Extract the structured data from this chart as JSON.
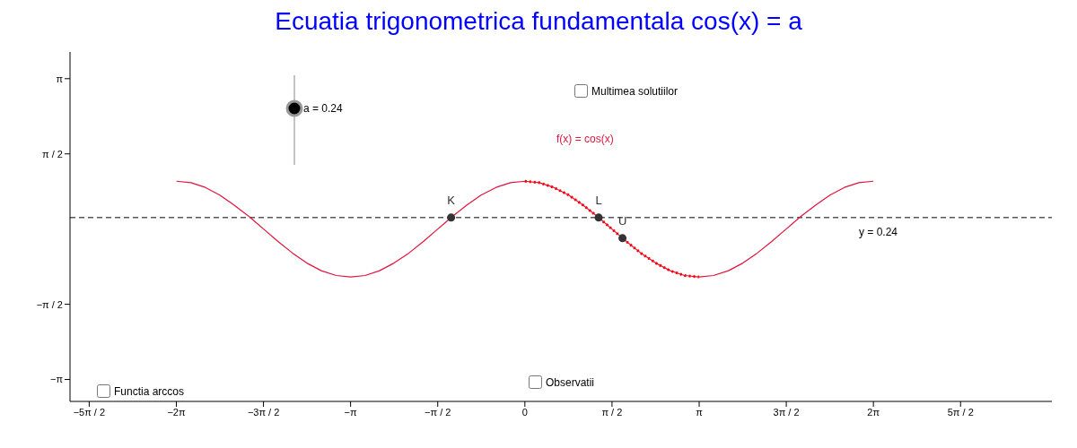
{
  "chart_data": {
    "type": "line",
    "title": "Ecuatia trigonometrica fundamentala cos(x) = a",
    "xlim": [
      -8.2,
      9.5
    ],
    "ylim": [
      -3.6,
      3.7
    ],
    "xticks": [
      {
        "value": -7.854,
        "label": "−5π / 2"
      },
      {
        "value": -6.283,
        "label": "−2π"
      },
      {
        "value": -4.712,
        "label": "−3π / 2"
      },
      {
        "value": -3.142,
        "label": "−π"
      },
      {
        "value": -1.571,
        "label": "−π / 2"
      },
      0,
      {
        "value": 1.571,
        "label": "π / 2"
      },
      {
        "value": 3.142,
        "label": "π"
      },
      {
        "value": 4.712,
        "label": "3π / 2"
      },
      {
        "value": 6.283,
        "label": "2π"
      },
      {
        "value": 7.854,
        "label": "5π / 2"
      }
    ],
    "yticks": [
      {
        "value": -3.142,
        "label": "−π"
      },
      {
        "value": -1.571,
        "label": "−π / 2"
      },
      {
        "value": 1.571,
        "label": "π / 2"
      },
      {
        "value": 3.142,
        "label": "π"
      }
    ],
    "grid": false,
    "legend": false,
    "marker": "none",
    "series": [
      {
        "name": "f(x) = cos(x)",
        "color": "#e0143c",
        "line_style": "solid",
        "x": [
          -6.28,
          -6.02,
          -5.76,
          -5.5,
          -5.24,
          -4.97,
          -4.71,
          -4.45,
          -4.19,
          -3.93,
          -3.67,
          -3.4,
          -3.14,
          -2.88,
          -2.62,
          -2.36,
          -2.09,
          -1.83,
          -1.57,
          -1.31,
          -1.05,
          -0.79,
          -0.52,
          -0.26,
          0,
          0.26,
          0.52,
          0.79,
          1.05,
          1.31,
          1.57,
          1.83,
          2.09,
          2.36,
          2.62,
          2.88,
          3.14,
          3.4,
          3.67,
          3.93,
          4.19,
          4.45,
          4.71,
          4.97,
          5.24,
          5.5,
          5.76,
          6.02,
          6.28
        ],
        "values": [
          1,
          0.97,
          0.87,
          0.71,
          0.5,
          0.26,
          0,
          -0.26,
          -0.5,
          -0.71,
          -0.87,
          -0.97,
          -1,
          -0.97,
          -0.87,
          -0.71,
          -0.5,
          -0.26,
          0,
          0.26,
          0.5,
          0.71,
          0.87,
          0.97,
          1,
          0.97,
          0.87,
          0.71,
          0.5,
          0.26,
          0,
          -0.26,
          -0.5,
          -0.71,
          -0.87,
          -0.97,
          -1,
          -0.97,
          -0.87,
          -0.71,
          -0.5,
          -0.26,
          0,
          0.26,
          0.5,
          0.71,
          0.87,
          0.97,
          1
        ]
      },
      {
        "color": "#ff0000",
        "line_style": "dotted",
        "x": [
          0,
          0.26,
          0.52,
          0.79,
          1.05,
          1.31,
          1.57,
          1.83,
          2.09,
          2.36,
          2.62,
          2.88,
          3.14
        ],
        "values": [
          1,
          0.97,
          0.87,
          0.71,
          0.5,
          0.26,
          0,
          -0.26,
          -0.5,
          -0.71,
          -0.87,
          -0.97,
          -1
        ]
      },
      {
        "name": "K",
        "type": "scatter",
        "color": "#333333",
        "marker": "circle",
        "x": [
          -1.33
        ],
        "values": [
          0.24
        ]
      },
      {
        "name": "L",
        "type": "scatter",
        "color": "#333333",
        "marker": "circle",
        "x": [
          1.33
        ],
        "values": [
          0.24
        ]
      },
      {
        "name": "U",
        "type": "scatter",
        "color": "#333333",
        "marker": "circle",
        "x": [
          1.76
        ],
        "values": [
          -0.19
        ]
      }
    ],
    "ref_lines": [
      {
        "axis": "y",
        "value": 0.24,
        "label": "y = 0.24",
        "color": "#000000",
        "line_style": "dashed"
      }
    ],
    "annotations": [
      "a = 0.24",
      "Multimea solutiilor",
      "Functia arccos",
      "Observatii"
    ]
  }
}
